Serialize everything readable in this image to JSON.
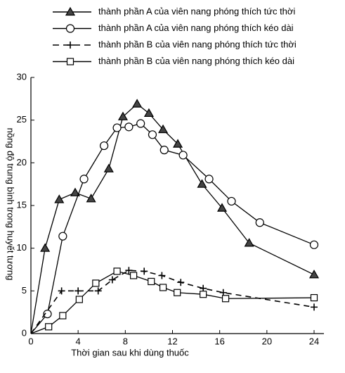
{
  "chart_data": {
    "type": "line",
    "xlabel": "Thời gian sau khi dùng thuốc",
    "ylabel": "nồng độ trung bình trong huyết tương",
    "xlim": [
      0,
      24
    ],
    "xticks": [
      0,
      4,
      8,
      12,
      16,
      20,
      24
    ],
    "ylim": [
      0,
      30
    ],
    "yticks": [
      0,
      5,
      10,
      15,
      20,
      25,
      30
    ],
    "series": [
      {
        "name": "thành phần A của viên nang phóng thích tức thời",
        "color": "#000000",
        "marker": "triangle",
        "dashed": false,
        "x": [
          0,
          1.2,
          2.4,
          3.75,
          5.1,
          6.6,
          7.8,
          9.0,
          10.0,
          11.2,
          12.45,
          14.5,
          16.2,
          18.5,
          24
        ],
        "values": [
          0,
          10.0,
          15.7,
          16.5,
          15.8,
          19.3,
          25.4,
          26.9,
          25.8,
          23.9,
          22.2,
          17.5,
          14.7,
          10.6,
          6.9
        ]
      },
      {
        "name": "thành phần A của viên nang phóng thích kéo dài",
        "color": "#000000",
        "marker": "circle",
        "dashed": false,
        "x": [
          0,
          1.4,
          2.7,
          4.5,
          6.2,
          7.3,
          8.3,
          9.3,
          10.3,
          11.3,
          12.9,
          15.1,
          17.0,
          19.4,
          24
        ],
        "values": [
          0,
          2.3,
          11.4,
          18.1,
          22.0,
          24.1,
          24.2,
          24.6,
          23.3,
          21.5,
          20.9,
          18.1,
          15.5,
          13.0,
          10.4
        ]
      },
      {
        "name": "thành phần B của viên nang phóng thích tức thời",
        "color": "#000000",
        "marker": "plus",
        "dashed": true,
        "x": [
          0,
          2.6,
          4.0,
          5.7,
          6.9,
          8.3,
          9.6,
          11.1,
          12.7,
          14.6,
          16.3,
          24
        ],
        "values": [
          0,
          5.0,
          5.0,
          5.0,
          6.3,
          7.4,
          7.3,
          6.8,
          6.0,
          5.3,
          4.8,
          3.1
        ]
      },
      {
        "name": "thành phần B của viên nang phóng thích kéo dài",
        "color": "#000000",
        "marker": "square",
        "dashed": false,
        "x": [
          0,
          1.5,
          2.7,
          4.1,
          5.5,
          7.3,
          8.7,
          10.2,
          11.2,
          12.4,
          14.6,
          16.5,
          24
        ],
        "values": [
          0,
          0.8,
          2.1,
          4.0,
          5.9,
          7.3,
          6.8,
          6.1,
          5.4,
          4.8,
          4.6,
          4.1,
          4.2
        ]
      }
    ]
  }
}
